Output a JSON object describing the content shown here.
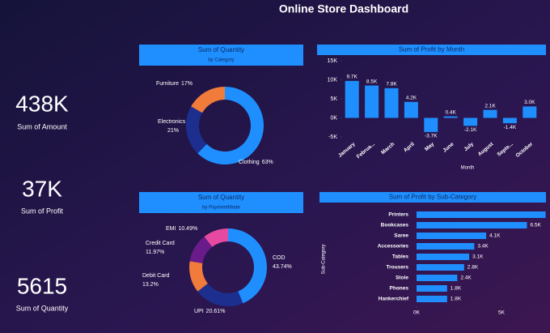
{
  "title": "Online Store Dashboard",
  "kpis": [
    {
      "value": "438K",
      "label": "Sum of Amount"
    },
    {
      "value": "37K",
      "label": "Sum of Profit"
    },
    {
      "value": "5615",
      "label": "Sum of Quantity"
    }
  ],
  "chart_data": [
    {
      "type": "donut",
      "title": "Sum of Quantity",
      "subtitle": "by Category",
      "categories": [
        "Clothing",
        "Electronics",
        "Furniture"
      ],
      "values": [
        63,
        21,
        17
      ],
      "value_labels": [
        "63%",
        "21%",
        "17%"
      ],
      "colors": [
        "#1f8fff",
        "#1c2f8f",
        "#f07b3a"
      ]
    },
    {
      "type": "bar",
      "title": "Sum of Profit by Month",
      "x_label": "Month",
      "categories": [
        "January",
        "Februa...",
        "March",
        "April",
        "May",
        "June",
        "July",
        "August",
        "Septe...",
        "October"
      ],
      "values": [
        9700,
        8500,
        7800,
        4200,
        -3700,
        400,
        -2100,
        2100,
        -1400,
        3000
      ],
      "value_labels": [
        "9.7K",
        "8.5K",
        "7.8K",
        "4.2K",
        "-3.7K",
        "0.4K",
        "-2.1K",
        "2.1K",
        "-1.4K",
        "3.0K"
      ],
      "color": "#1f8fff",
      "ylim": [
        -5000,
        15000
      ],
      "yticks": [
        {
          "value": -5000,
          "label": "-5K"
        },
        {
          "value": 0,
          "label": "0K"
        },
        {
          "value": 5000,
          "label": "5K"
        },
        {
          "value": 10000,
          "label": "10K"
        },
        {
          "value": 15000,
          "label": "15K"
        }
      ]
    },
    {
      "type": "donut",
      "title": "Sum of Quantity",
      "subtitle": "by PaymentMode",
      "categories": [
        "COD",
        "UPI",
        "Debit Card",
        "Credit Card",
        "EMI"
      ],
      "values": [
        43.74,
        20.61,
        13.2,
        11.97,
        10.49
      ],
      "value_labels": [
        "43.74%",
        "20.61%",
        "13.2%",
        "11.97%",
        "10.49%"
      ],
      "colors": [
        "#1f8fff",
        "#1c2f8f",
        "#f07b3a",
        "#6a1b8a",
        "#e64aa0"
      ]
    },
    {
      "type": "hbar",
      "title": "Sum of Profit by Sub-Category",
      "y_label": "Sub-Category",
      "categories": [
        "Printers",
        "Bookcases",
        "Saree",
        "Accessories",
        "Tables",
        "Trousers",
        "Stole",
        "Phones",
        "Hankerchief"
      ],
      "values": [
        7600,
        6500,
        4100,
        3400,
        3100,
        2800,
        2400,
        1800,
        1800
      ],
      "value_labels": [
        null,
        "6.5K",
        "4.1K",
        "3.4K",
        "3.1K",
        "2.8K",
        "2.4K",
        "1.8K",
        "1.8K"
      ],
      "color": "#1f8fff",
      "xlim": [
        0,
        8000
      ],
      "xticks": [
        {
          "value": 0,
          "label": "0K"
        },
        {
          "value": 5000,
          "label": "5K"
        }
      ]
    }
  ]
}
